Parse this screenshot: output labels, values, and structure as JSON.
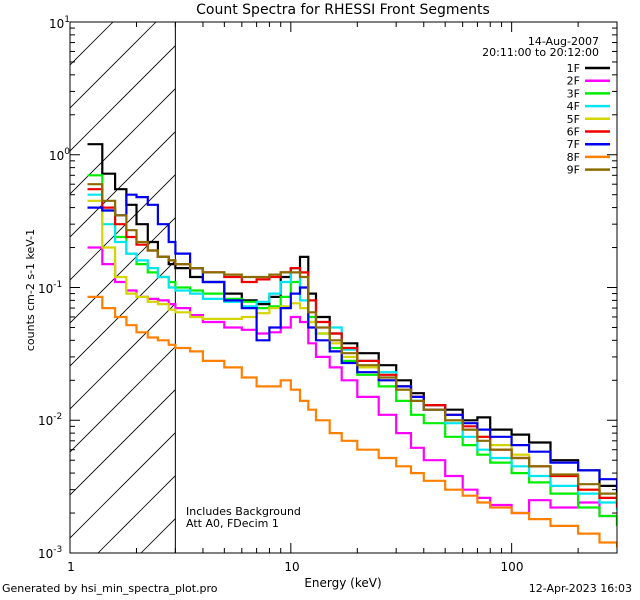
{
  "chart_data": {
    "type": "line",
    "title": "Count Spectra for RHESSI Front Segments",
    "xlabel": "Energy (keV)",
    "ylabel": "counts cm-2 s-1 keV-1",
    "xscale": "log",
    "yscale": "log",
    "xlim": [
      1,
      300
    ],
    "ylim": [
      0.001,
      10
    ],
    "x_tick_labels": [
      "1",
      "10",
      "100"
    ],
    "y_tick_labels": [
      "10",
      "10",
      "10",
      "10",
      "10"
    ],
    "y_tick_exponents": [
      "1",
      "0",
      "-1",
      "-2",
      "-3"
    ],
    "hatched_region_keV": [
      1,
      3
    ],
    "annotations": {
      "date": "14-Aug-2007",
      "time_range": "20:11:00 to 20:12:00",
      "note1": "Includes Background",
      "note2": "Att A0, FDecim 1"
    },
    "x": [
      1.2,
      1.4,
      1.6,
      1.8,
      2.0,
      2.25,
      2.5,
      2.8,
      3.0,
      3.5,
      4.0,
      5.0,
      6.0,
      7.0,
      8.0,
      9.0,
      10.0,
      11.0,
      12.0,
      13.0,
      15.0,
      17.0,
      20.0,
      25.0,
      30.0,
      35.0,
      40.0,
      50.0,
      60.0,
      70.0,
      80.0,
      100.0,
      120.0,
      150.0,
      200.0,
      250.0,
      300.0
    ],
    "series": [
      {
        "name": "1F",
        "color": "#000000",
        "values": [
          1.2,
          0.72,
          0.55,
          0.42,
          0.3,
          0.22,
          0.17,
          0.15,
          0.14,
          0.12,
          0.11,
          0.09,
          0.08,
          0.075,
          0.085,
          0.12,
          0.14,
          0.17,
          0.09,
          0.06,
          0.045,
          0.038,
          0.032,
          0.026,
          0.02,
          0.016,
          0.013,
          0.012,
          0.01,
          0.0105,
          0.0085,
          0.0078,
          0.0068,
          0.005,
          0.0042,
          0.0032,
          0.0025
        ]
      },
      {
        "name": "2F",
        "color": "#ff00ff",
        "values": [
          0.2,
          0.15,
          0.11,
          0.095,
          0.085,
          0.082,
          0.08,
          0.075,
          0.07,
          0.062,
          0.055,
          0.05,
          0.048,
          0.045,
          0.046,
          0.05,
          0.06,
          0.055,
          0.038,
          0.03,
          0.025,
          0.02,
          0.015,
          0.011,
          0.008,
          0.0062,
          0.005,
          0.0038,
          0.003,
          0.0026,
          0.0023,
          0.002,
          0.0025,
          0.0022,
          0.0024,
          0.0019,
          0.0016
        ]
      },
      {
        "name": "3F",
        "color": "#00ee00",
        "values": [
          0.7,
          0.38,
          0.24,
          0.18,
          0.15,
          0.13,
          0.12,
          0.11,
          0.1,
          0.095,
          0.09,
          0.082,
          0.078,
          0.07,
          0.072,
          0.085,
          0.11,
          0.1,
          0.06,
          0.045,
          0.035,
          0.028,
          0.022,
          0.018,
          0.014,
          0.011,
          0.0095,
          0.0075,
          0.0065,
          0.0055,
          0.0048,
          0.004,
          0.0034,
          0.0028,
          0.0022,
          0.0019,
          0.0016
        ]
      },
      {
        "name": "4F",
        "color": "#00e5ee",
        "values": [
          0.5,
          0.3,
          0.22,
          0.18,
          0.16,
          0.14,
          0.12,
          0.1,
          0.095,
          0.09,
          0.082,
          0.078,
          0.072,
          0.078,
          0.09,
          0.11,
          0.14,
          0.08,
          0.055,
          0.045,
          0.05,
          0.034,
          0.028,
          0.023,
          0.018,
          0.014,
          0.012,
          0.0095,
          0.0075,
          0.006,
          0.0052,
          0.0045,
          0.0038,
          0.0032,
          0.0028,
          0.0024,
          0.0021
        ]
      },
      {
        "name": "5F",
        "color": "#d4d400",
        "values": [
          0.45,
          0.2,
          0.12,
          0.09,
          0.085,
          0.078,
          0.075,
          0.068,
          0.065,
          0.06,
          0.058,
          0.058,
          0.06,
          0.064,
          0.07,
          0.072,
          0.076,
          0.07,
          0.055,
          0.045,
          0.038,
          0.03,
          0.025,
          0.02,
          0.017,
          0.015,
          0.012,
          0.01,
          0.0085,
          0.0075,
          0.0065,
          0.0055,
          0.0045,
          0.0038,
          0.003,
          0.0026,
          0.0022
        ]
      },
      {
        "name": "6F",
        "color": "#ee0000",
        "values": [
          0.55,
          0.4,
          0.3,
          0.24,
          0.21,
          0.19,
          0.17,
          0.16,
          0.15,
          0.14,
          0.13,
          0.12,
          0.11,
          0.115,
          0.12,
          0.13,
          0.14,
          0.13,
          0.08,
          0.055,
          0.045,
          0.035,
          0.028,
          0.022,
          0.018,
          0.015,
          0.013,
          0.011,
          0.009,
          0.0075,
          0.006,
          0.0052,
          0.0045,
          0.0038,
          0.003,
          0.0026,
          0.0022
        ]
      },
      {
        "name": "7F",
        "color": "#0000ee",
        "values": [
          0.4,
          0.38,
          0.35,
          0.5,
          0.48,
          0.42,
          0.3,
          0.22,
          0.18,
          0.14,
          0.11,
          0.08,
          0.07,
          0.04,
          0.05,
          0.07,
          0.09,
          0.1,
          0.05,
          0.04,
          0.033,
          0.027,
          0.023,
          0.02,
          0.018,
          0.015,
          0.012,
          0.011,
          0.0095,
          0.0085,
          0.0075,
          0.0065,
          0.0058,
          0.0048,
          0.0042,
          0.0036,
          0.003
        ]
      },
      {
        "name": "8F",
        "color": "#ff8000",
        "values": [
          0.085,
          0.07,
          0.06,
          0.052,
          0.046,
          0.042,
          0.04,
          0.037,
          0.035,
          0.033,
          0.028,
          0.025,
          0.021,
          0.018,
          0.018,
          0.02,
          0.017,
          0.014,
          0.012,
          0.01,
          0.008,
          0.007,
          0.006,
          0.0052,
          0.0045,
          0.004,
          0.0035,
          0.003,
          0.0027,
          0.0024,
          0.0022,
          0.002,
          0.0018,
          0.0016,
          0.0014,
          0.0012,
          0.0011
        ]
      },
      {
        "name": "9F",
        "color": "#8b6b00",
        "values": [
          0.6,
          0.45,
          0.35,
          0.27,
          0.22,
          0.19,
          0.17,
          0.16,
          0.15,
          0.14,
          0.13,
          0.125,
          0.12,
          0.12,
          0.125,
          0.13,
          0.13,
          0.12,
          0.065,
          0.05,
          0.04,
          0.032,
          0.026,
          0.021,
          0.017,
          0.014,
          0.012,
          0.01,
          0.0085,
          0.007,
          0.006,
          0.0052,
          0.0045,
          0.0039,
          0.0033,
          0.0028,
          0.0024
        ]
      }
    ]
  },
  "footer": {
    "left": "Generated by hsi_min_spectra_plot.pro",
    "right": "12-Apr-2023 16:03"
  }
}
